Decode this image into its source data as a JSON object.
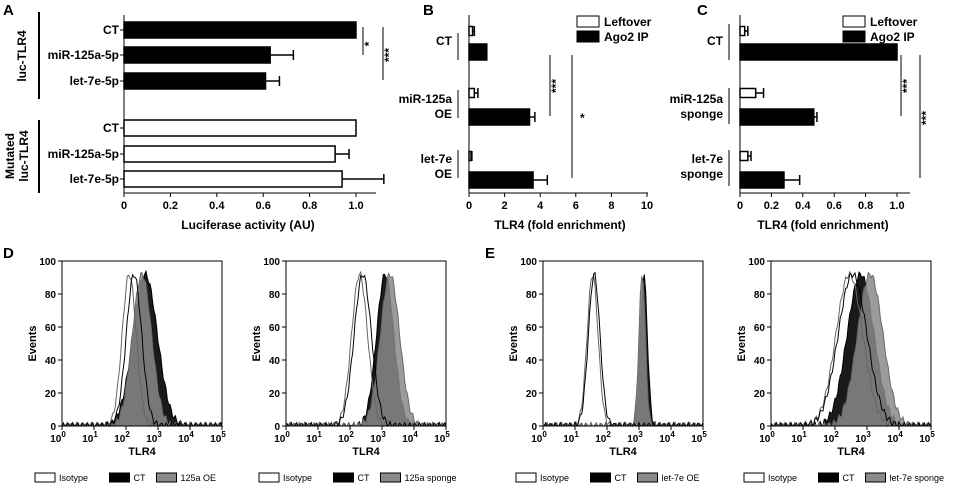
{
  "panel_labels": {
    "a": "A",
    "b": "B",
    "c": "C",
    "d": "D",
    "e": "E"
  },
  "chart_data": [
    {
      "id": "A",
      "type": "bar",
      "orientation": "horizontal",
      "groups": [
        "luc-TLR4",
        "Mutated luc-TLR4"
      ],
      "group_labels": {
        "top": "luc-TLR4",
        "bottom_line1": "Mutated",
        "bottom_line2": "luc-TLR4"
      },
      "categories": [
        "CT",
        "miR-125a-5p",
        "let-7e-5p",
        "CT",
        "miR-125a-5p",
        "let-7e-5p"
      ],
      "values": [
        1.0,
        0.63,
        0.61,
        1.0,
        0.91,
        0.94
      ],
      "errors": [
        0,
        0.1,
        0.06,
        0,
        0.06,
        0.18
      ],
      "fills": [
        "#000000",
        "#000000",
        "#000000",
        "#ffffff",
        "#ffffff",
        "#ffffff"
      ],
      "xlabel": "Luciferase activity (AU)",
      "xlim": [
        0,
        1.1
      ],
      "xticks": [
        "0",
        "0.2",
        "0.4",
        "0.6",
        "0.8",
        "1.0"
      ],
      "significance": [
        "*",
        "***"
      ]
    },
    {
      "id": "B",
      "type": "bar",
      "orientation": "horizontal",
      "series": [
        {
          "name": "Leftover",
          "color": "#ffffff",
          "values": [
            0.2,
            0.3,
            0.1
          ],
          "errors": [
            0.1,
            0.2,
            0.05
          ]
        },
        {
          "name": "Ago2 IP",
          "color": "#000000",
          "values": [
            1.0,
            3.4,
            3.6
          ],
          "errors": [
            0,
            0.3,
            0.8
          ]
        }
      ],
      "categories": [
        "CT",
        "miR-125a OE",
        "let-7e OE"
      ],
      "category_lines": [
        [
          "CT"
        ],
        [
          "miR-125a",
          "OE"
        ],
        [
          "let-7e",
          "OE"
        ]
      ],
      "xlabel": "TLR4 (fold enrichment)",
      "xlim": [
        0,
        10
      ],
      "xticks": [
        "0",
        "2",
        "4",
        "6",
        "8",
        "10"
      ],
      "significance": [
        "***",
        "*"
      ]
    },
    {
      "id": "C",
      "type": "bar",
      "orientation": "horizontal",
      "series": [
        {
          "name": "Leftover",
          "color": "#ffffff",
          "values": [
            0.03,
            0.1,
            0.05
          ],
          "errors": [
            0.02,
            0.05,
            0.02
          ]
        },
        {
          "name": "Ago2 IP",
          "color": "#000000",
          "values": [
            1.0,
            0.47,
            0.28
          ],
          "errors": [
            0,
            0.02,
            0.1
          ]
        }
      ],
      "categories": [
        "CT",
        "miR-125a sponge",
        "let-7e sponge"
      ],
      "category_lines": [
        [
          "CT"
        ],
        [
          "miR-125a",
          "sponge"
        ],
        [
          "let-7e",
          "sponge"
        ]
      ],
      "xlabel": "TLR4 (fold enrichment)",
      "xlim": [
        0,
        1.1
      ],
      "xticks": [
        "0",
        "0.2",
        "0.4",
        "0.6",
        "0.8",
        "1.0"
      ],
      "significance": [
        "***",
        "***"
      ]
    },
    {
      "id": "D1",
      "type": "area",
      "scale": "log",
      "xlabel": "TLR4",
      "ylabel": "Events",
      "yticks": [
        "0",
        "20",
        "40",
        "60",
        "80",
        "100"
      ],
      "xticks_exp": [
        "0",
        "1",
        "2",
        "3",
        "4",
        "5"
      ],
      "series": [
        {
          "name": "Isotype",
          "style": "outline",
          "peak_log": 2.1,
          "width": 0.22
        },
        {
          "name": "Isotype",
          "style": "outline",
          "peak_log": 2.25,
          "width": 0.24
        },
        {
          "name": "CT",
          "style": "dark",
          "peak_log": 2.6,
          "width": 0.38
        },
        {
          "name": "125a OE",
          "style": "gray",
          "peak_log": 2.5,
          "width": 0.3
        }
      ],
      "legend": [
        "Isotype",
        "CT",
        "125a OE"
      ]
    },
    {
      "id": "D2",
      "type": "area",
      "scale": "log",
      "xlabel": "TLR4",
      "ylabel": "Events",
      "yticks": [
        "0",
        "20",
        "40",
        "60",
        "80",
        "100"
      ],
      "xticks_exp": [
        "0",
        "1",
        "2",
        "3",
        "4",
        "5"
      ],
      "series": [
        {
          "name": "Isotype",
          "style": "outline",
          "peak_log": 2.3,
          "width": 0.25
        },
        {
          "name": "Isotype",
          "style": "outline",
          "peak_log": 2.4,
          "width": 0.27
        },
        {
          "name": "CT",
          "style": "dark",
          "peak_log": 3.1,
          "width": 0.27
        },
        {
          "name": "125a sponge",
          "style": "gray",
          "peak_log": 3.25,
          "width": 0.3
        }
      ],
      "legend": [
        "Isotype",
        "CT",
        "125a sponge"
      ]
    },
    {
      "id": "E1",
      "type": "area",
      "scale": "log",
      "xlabel": "TLR4",
      "ylabel": "Events",
      "yticks": [
        "0",
        "20",
        "40",
        "60",
        "80",
        "100"
      ],
      "xticks_exp": [
        "0",
        "1",
        "2",
        "3",
        "4",
        "5"
      ],
      "series": [
        {
          "name": "Isotype",
          "style": "outline",
          "peak_log": 1.55,
          "width": 0.17
        },
        {
          "name": "Isotype",
          "style": "outline",
          "peak_log": 1.6,
          "width": 0.18
        },
        {
          "name": "CT",
          "style": "dark",
          "peak_log": 3.15,
          "width": 0.11
        },
        {
          "name": "let-7e OE",
          "style": "gray",
          "peak_log": 3.1,
          "width": 0.1
        }
      ],
      "legend": [
        "Isotype",
        "CT",
        "let-7e OE"
      ]
    },
    {
      "id": "E2",
      "type": "area",
      "scale": "log",
      "xlabel": "TLR4",
      "ylabel": "Events",
      "yticks": [
        "0",
        "20",
        "40",
        "60",
        "80",
        "100"
      ],
      "xticks_exp": [
        "0",
        "1",
        "2",
        "3",
        "4",
        "5"
      ],
      "series": [
        {
          "name": "Isotype",
          "style": "outline",
          "peak_log": 2.45,
          "width": 0.42
        },
        {
          "name": "Isotype",
          "style": "outline",
          "peak_log": 2.55,
          "width": 0.45
        },
        {
          "name": "CT",
          "style": "dark",
          "peak_log": 2.8,
          "width": 0.42
        },
        {
          "name": "let-7e sponge",
          "style": "gray",
          "peak_log": 3.1,
          "width": 0.4
        }
      ],
      "legend": [
        "Isotype",
        "CT",
        "let-7e sponge"
      ]
    }
  ]
}
